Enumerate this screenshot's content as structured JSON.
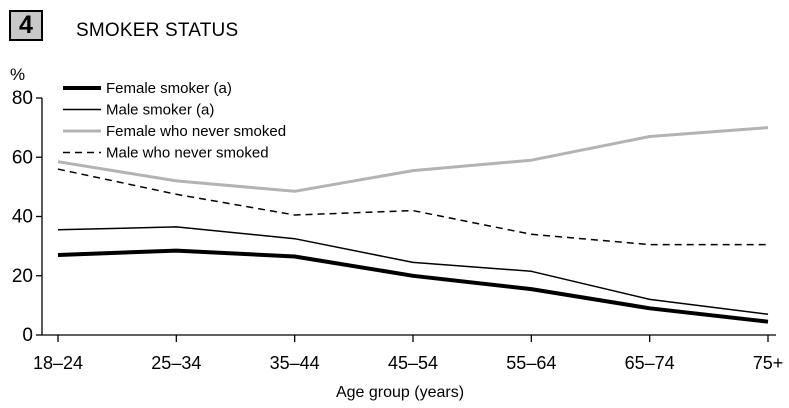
{
  "figure": {
    "number": "4",
    "title": "SMOKER STATUS"
  },
  "chart_data": {
    "type": "line",
    "title": "SMOKER STATUS",
    "xlabel": "Age group (years)",
    "ylabel": "%",
    "categories": [
      "18–24",
      "25–34",
      "35–44",
      "45–54",
      "55–64",
      "65–74",
      "75+"
    ],
    "yticks": [
      0,
      20,
      40,
      60,
      80
    ],
    "ylim": [
      0,
      80
    ],
    "grid": false,
    "legend_position": "top-left",
    "series": [
      {
        "name": "Female smoker (a)",
        "values": [
          27,
          28.5,
          26.5,
          20,
          15.5,
          9,
          4.5
        ],
        "color": "#000000",
        "style": "thick-solid"
      },
      {
        "name": "Male smoker (a)",
        "values": [
          35.5,
          36.5,
          32.5,
          24.5,
          21.5,
          12,
          7
        ],
        "color": "#000000",
        "style": "thin-solid"
      },
      {
        "name": "Female who never smoked",
        "values": [
          58.5,
          52,
          48.5,
          55.5,
          59,
          67,
          70
        ],
        "color": "#b3b3b3",
        "style": "gray-solid"
      },
      {
        "name": "Male who never smoked",
        "values": [
          56,
          47.5,
          40.5,
          42,
          34,
          30.5,
          30.5
        ],
        "color": "#000000",
        "style": "thin-dashed"
      }
    ]
  }
}
